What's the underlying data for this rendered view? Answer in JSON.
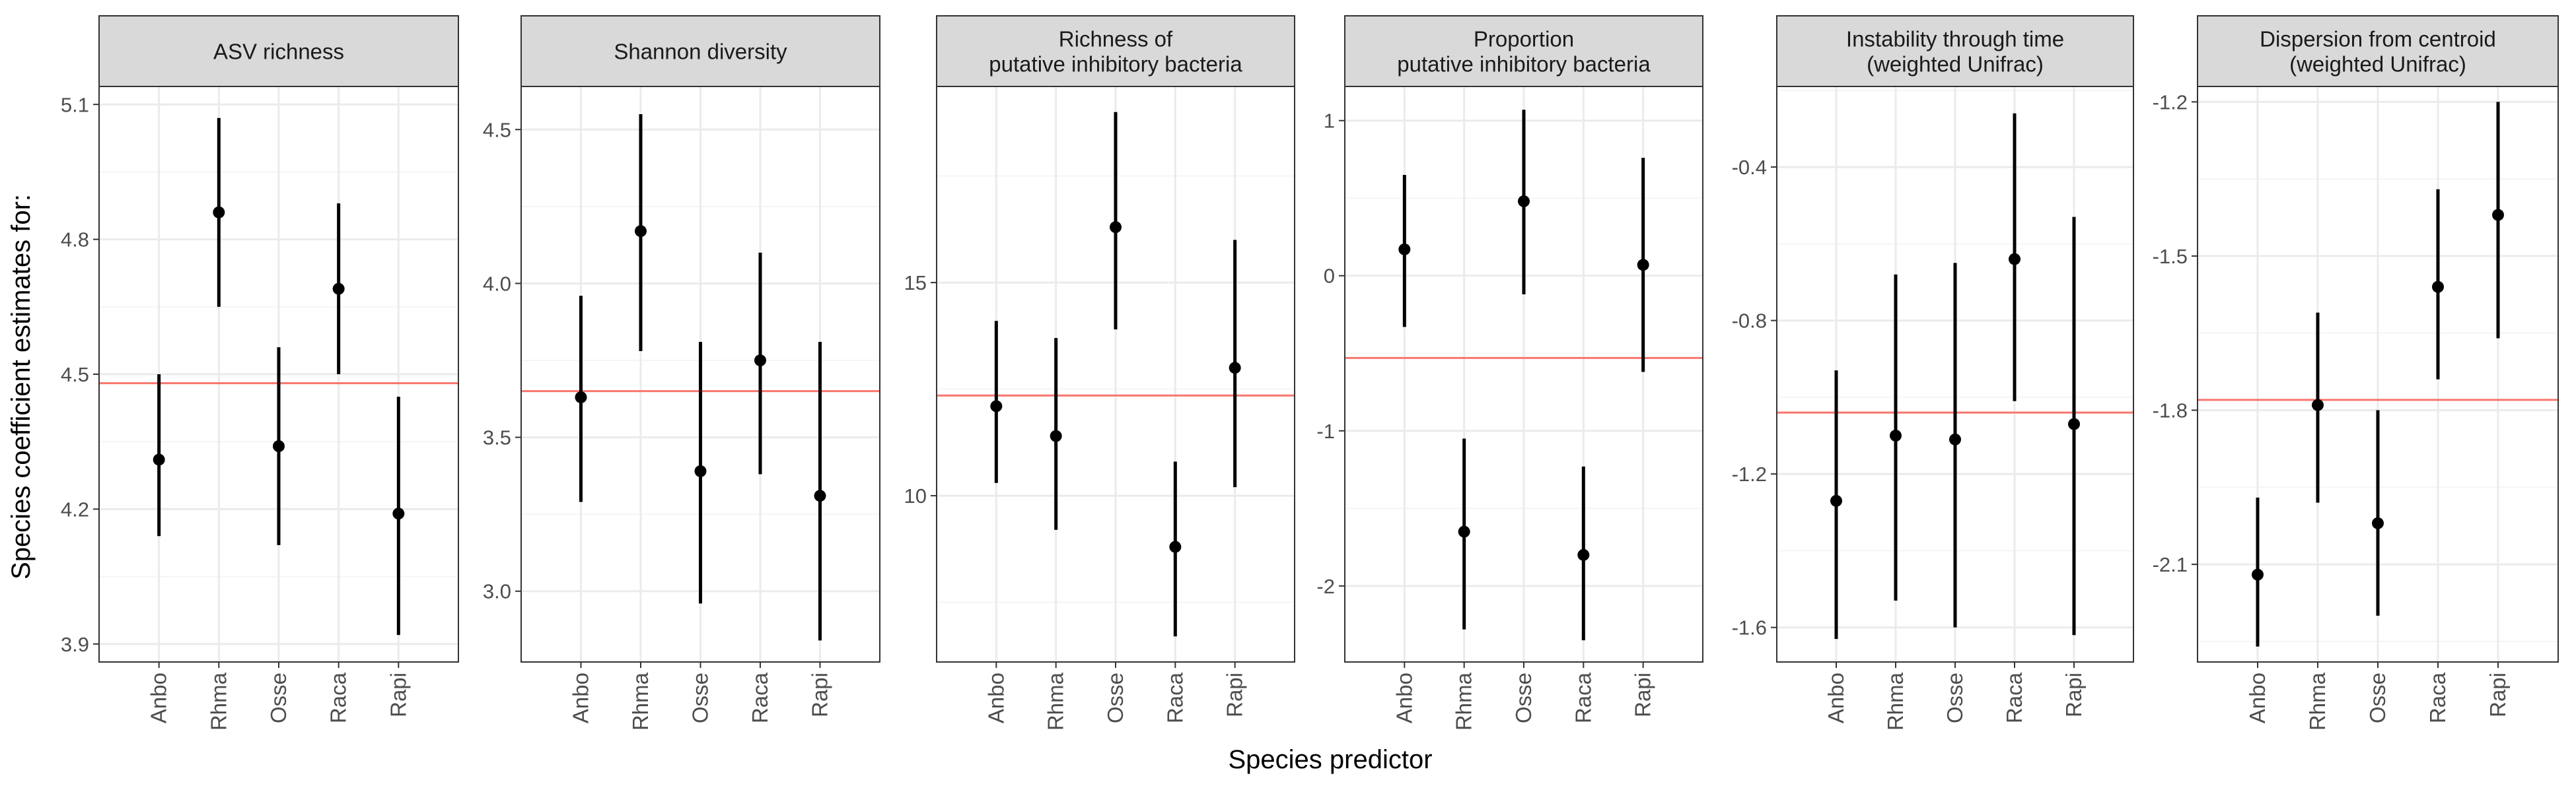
{
  "figure": {
    "ylabel": "Species coefficient estimates for:",
    "xlabel": "Species predictor"
  },
  "colors": {
    "strip_fill": "#d9d9d9",
    "strip_border": "#333333",
    "panel_border": "#333333",
    "grid_major": "#ebebeb",
    "grid_minor": "#f5f5f5",
    "point": "#000000",
    "reference_line": "#f8766d"
  },
  "chart_data": [
    {
      "type": "scatter",
      "title": "ASV richness",
      "categories": [
        "Anbo",
        "Rhma",
        "Osse",
        "Raca",
        "Rapi"
      ],
      "estimate": [
        4.31,
        4.86,
        4.34,
        4.69,
        4.19
      ],
      "lower": [
        4.14,
        4.65,
        4.12,
        4.5,
        3.92
      ],
      "upper": [
        4.5,
        5.07,
        4.56,
        4.88,
        4.45
      ],
      "reference": 4.48,
      "yticks": [
        "3.9",
        "4.2",
        "4.5",
        "4.8",
        "5.1"
      ],
      "ylim": [
        3.86,
        5.14
      ]
    },
    {
      "type": "scatter",
      "title": "Shannon diversity",
      "categories": [
        "Anbo",
        "Rhma",
        "Osse",
        "Raca",
        "Rapi"
      ],
      "estimate": [
        3.63,
        4.17,
        3.39,
        3.75,
        3.31
      ],
      "lower": [
        3.29,
        3.78,
        2.96,
        3.38,
        2.84
      ],
      "upper": [
        3.96,
        4.55,
        3.81,
        4.1,
        3.81
      ],
      "reference": 3.65,
      "yticks": [
        "3.0",
        "3.5",
        "4.0",
        "4.5"
      ],
      "ylim": [
        2.77,
        4.64
      ]
    },
    {
      "type": "scatter",
      "title": "Richness of\nputative inhibitory bacteria",
      "categories": [
        "Anbo",
        "Rhma",
        "Osse",
        "Raca",
        "Rapi"
      ],
      "estimate": [
        12.1,
        11.4,
        16.3,
        8.8,
        13.0
      ],
      "lower": [
        10.3,
        9.2,
        13.9,
        6.7,
        10.2
      ],
      "upper": [
        14.1,
        13.7,
        19.0,
        10.8,
        16.0
      ],
      "reference": 12.35,
      "yticks": [
        "10",
        "15"
      ],
      "ylim": [
        6.1,
        19.6
      ]
    },
    {
      "type": "scatter",
      "title": "Proportion\nputative inhibitory bacteria",
      "categories": [
        "Anbo",
        "Rhma",
        "Osse",
        "Raca",
        "Rapi"
      ],
      "estimate": [
        0.17,
        -1.65,
        0.48,
        -1.8,
        0.07
      ],
      "lower": [
        -0.33,
        -2.28,
        -0.12,
        -2.35,
        -0.62
      ],
      "upper": [
        0.65,
        -1.05,
        1.07,
        -1.23,
        0.76
      ],
      "reference": -0.53,
      "yticks": [
        "-2",
        "-1",
        "0",
        "1"
      ],
      "ylim": [
        -2.49,
        1.22
      ]
    },
    {
      "type": "scatter",
      "title": "Instability through time\n(weighted Unifrac)",
      "categories": [
        "Anbo",
        "Rhma",
        "Osse",
        "Raca",
        "Rapi"
      ],
      "estimate": [
        -1.27,
        -1.1,
        -1.11,
        -0.64,
        -1.07
      ],
      "lower": [
        -1.63,
        -1.53,
        -1.6,
        -1.01,
        -1.62
      ],
      "upper": [
        -0.93,
        -0.68,
        -0.65,
        -0.26,
        -0.53
      ],
      "reference": -1.04,
      "yticks": [
        "-1.6",
        "-1.2",
        "-0.8",
        "-0.4"
      ],
      "ylim": [
        -1.69,
        -0.19
      ]
    },
    {
      "type": "scatter",
      "title": "Dispersion from centroid\n(weighted Unifrac)",
      "categories": [
        "Anbo",
        "Rhma",
        "Osse",
        "Raca",
        "Rapi"
      ],
      "estimate": [
        -2.12,
        -1.79,
        -2.02,
        -1.56,
        -1.42
      ],
      "lower": [
        -2.26,
        -1.98,
        -2.2,
        -1.74,
        -1.66
      ],
      "upper": [
        -1.97,
        -1.61,
        -1.8,
        -1.37,
        -1.2
      ],
      "reference": -1.78,
      "yticks": [
        "-2.1",
        "-1.8",
        "-1.5",
        "-1.2"
      ],
      "ylim": [
        -2.29,
        -1.17
      ]
    }
  ]
}
